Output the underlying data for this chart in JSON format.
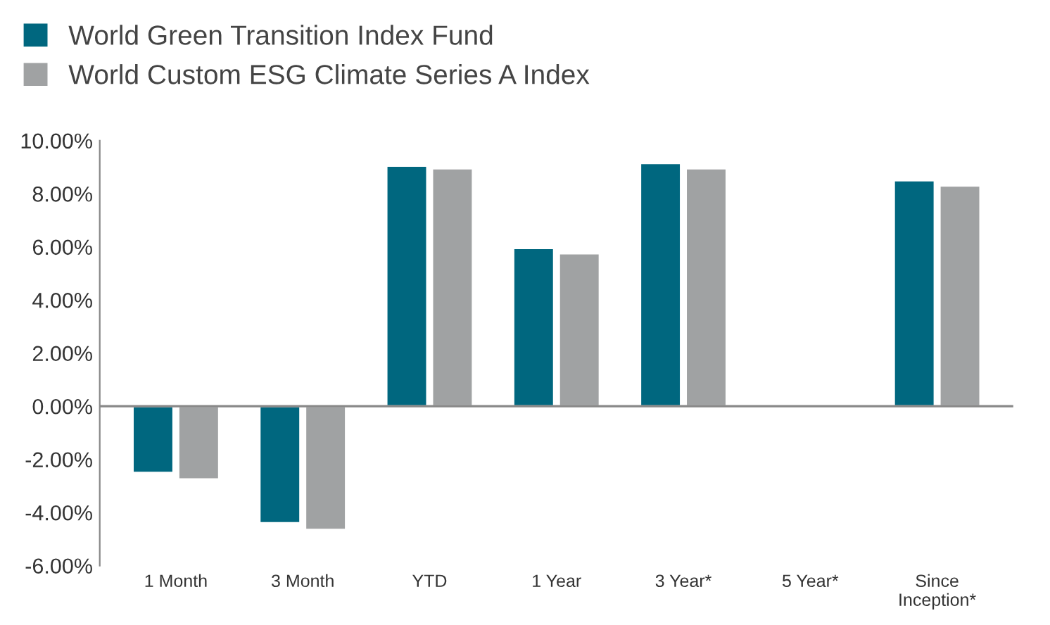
{
  "chart_data": {
    "type": "bar",
    "categories": [
      "1 Month",
      "3 Month",
      "YTD",
      "1 Year",
      "3 Year*",
      "5 Year*",
      "Since\nInception*"
    ],
    "series": [
      {
        "name": "World Green Transition Index Fund",
        "color": "#00677f",
        "values": [
          -2.5,
          -4.4,
          9.05,
          5.95,
          9.15,
          null,
          8.5
        ]
      },
      {
        "name": "World Custom ESG Climate Series A Index",
        "color": "#a0a2a3",
        "values": [
          -2.75,
          -4.65,
          8.95,
          5.75,
          8.95,
          null,
          8.3
        ]
      }
    ],
    "ylim": [
      -6,
      10
    ],
    "yticks": [
      {
        "value": -6,
        "label": "-6.00%"
      },
      {
        "value": -4,
        "label": "-4.00%"
      },
      {
        "value": -2,
        "label": "-2.00%"
      },
      {
        "value": 0,
        "label": "0.00%"
      },
      {
        "value": 2,
        "label": "2.00%"
      },
      {
        "value": 4,
        "label": "4.00%"
      },
      {
        "value": 6,
        "label": "6.00%"
      },
      {
        "value": 8,
        "label": "8.00%"
      },
      {
        "value": 10,
        "label": "10.00%"
      }
    ],
    "ref_lines": [
      {
        "axis": "y",
        "value": 0,
        "color": "#888888"
      }
    ],
    "legend": "top left"
  }
}
